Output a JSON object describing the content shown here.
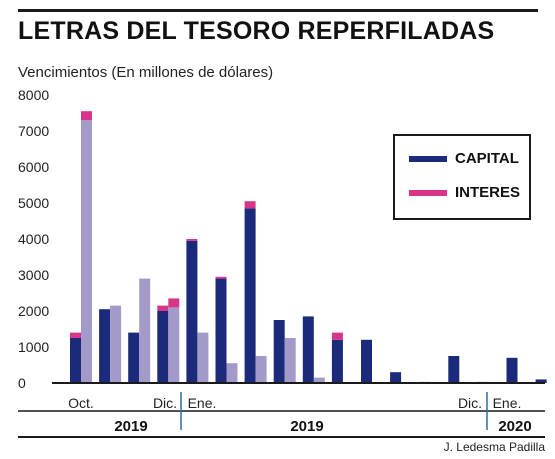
{
  "title": "LETRAS DEL TESORO REPERFILADAS",
  "subtitle": "Vencimientos (En millones de dólares)",
  "credit": "J. Ledesma Padilla",
  "colors": {
    "capital": "#1b2a7a",
    "interes": "#d6358a",
    "secondary": "#a49ac9",
    "axis": "#1a1a1a",
    "divider": "#2b6cb0"
  },
  "legend": {
    "capital": "CAPITAL",
    "interes": "INTERES"
  },
  "chart_data": {
    "type": "bar",
    "stacked": true,
    "ylim": [
      0,
      8000
    ],
    "yticks": [
      "8000",
      "7000",
      "6000",
      "5000",
      "4000",
      "3000",
      "2000",
      "1000",
      "0"
    ],
    "x_labels": [
      {
        "text": "Oct.",
        "after_group": 0
      },
      {
        "text": "Dic.",
        "after_group": 3
      },
      {
        "text": "Ene.",
        "after_group": 4
      },
      {
        "text": "Dic.",
        "after_group": 14
      },
      {
        "text": "Ene.",
        "after_group": 15
      }
    ],
    "years": [
      {
        "text": "2019",
        "from_group": 0,
        "to_group": 3
      },
      {
        "text": "2019",
        "from_group": 4,
        "to_group": 14
      },
      {
        "text": "2020",
        "from_group": 15,
        "to_group": 16
      }
    ],
    "groups": [
      {
        "capital": 1250,
        "interes": 150,
        "secondary": 7300,
        "secondary_interes": 250
      },
      {
        "capital": 2050,
        "interes": 0,
        "secondary": 2150,
        "secondary_interes": 0
      },
      {
        "capital": 1400,
        "interes": 0,
        "secondary": 2900,
        "secondary_interes": 0
      },
      {
        "capital": 2000,
        "interes": 150,
        "secondary": 2100,
        "secondary_interes": 250
      },
      {
        "capital": 3950,
        "interes": 50,
        "secondary": 1400,
        "secondary_interes": 0
      },
      {
        "capital": 2900,
        "interes": 50,
        "secondary": 550,
        "secondary_interes": 0
      },
      {
        "capital": 4850,
        "interes": 200,
        "secondary": 750,
        "secondary_interes": 0
      },
      {
        "capital": 1750,
        "interes": 0,
        "secondary": 1250,
        "secondary_interes": 0
      },
      {
        "capital": 1850,
        "interes": 0,
        "secondary": 150,
        "secondary_interes": 0
      },
      {
        "capital": 1200,
        "interes": 200,
        "secondary": null,
        "secondary_interes": 0
      },
      {
        "capital": 1200,
        "interes": 0,
        "secondary": null,
        "secondary_interes": 0
      },
      {
        "capital": 300,
        "interes": 0,
        "secondary": null,
        "secondary_interes": 0
      },
      {
        "capital": 30,
        "interes": 0,
        "secondary": null,
        "secondary_interes": 0
      },
      {
        "capital": 750,
        "interes": 0,
        "secondary": null,
        "secondary_interes": 0
      },
      {
        "capital": 30,
        "interes": 0,
        "secondary": null,
        "secondary_interes": 0
      },
      {
        "capital": 700,
        "interes": 0,
        "secondary": null,
        "secondary_interes": 0
      },
      {
        "capital": 100,
        "interes": 0,
        "secondary": null,
        "secondary_interes": 0
      }
    ]
  }
}
